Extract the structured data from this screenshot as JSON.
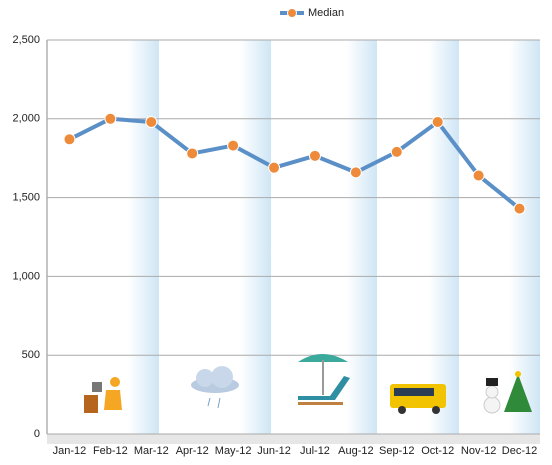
{
  "chart_data": {
    "type": "line",
    "categories": [
      "Jan-12",
      "Feb-12",
      "Mar-12",
      "Apr-12",
      "May-12",
      "Jun-12",
      "Jul-12",
      "Aug-12",
      "Sep-12",
      "Oct-12",
      "Nov-12",
      "Dec-12"
    ],
    "series": [
      {
        "name": "Median",
        "color": "#5b8fc7",
        "marker_color": "#ed8b3a",
        "values": [
          1870,
          2000,
          1980,
          1780,
          1830,
          1690,
          1765,
          1660,
          1790,
          1980,
          1640,
          1430
        ]
      }
    ],
    "ylim": [
      0,
      2500
    ],
    "yticks": [
      0,
      500,
      {
        "value": 1000,
        "label": "1,000"
      },
      {
        "value": 1500,
        "label": "1,500"
      },
      {
        "value": 2000,
        "label": "2,000"
      },
      {
        "value": 2500,
        "label": "2,500"
      }
    ],
    "grid": true,
    "legend": "top"
  }
}
